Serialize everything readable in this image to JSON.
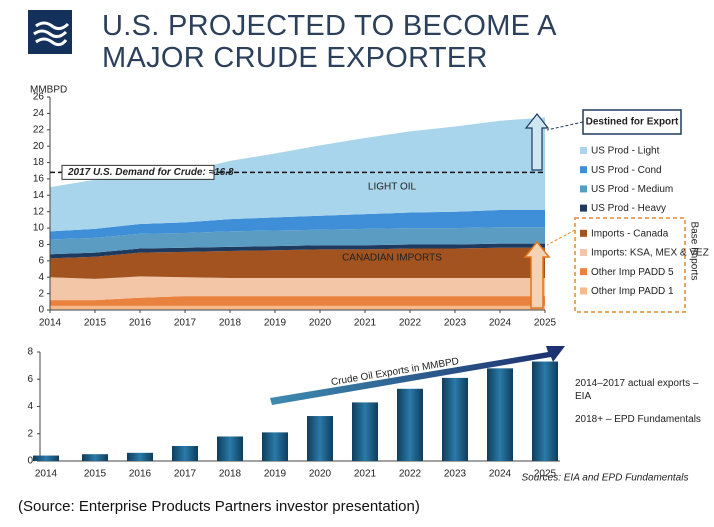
{
  "title": "U.S. PROJECTED TO BECOME A MAJOR CRUDE EXPORTER",
  "footer": "(Source: Enterprise Products Partners investor presentation)",
  "chart_data": [
    {
      "type": "area",
      "stacked": true,
      "y_label": "MMBPD",
      "x": [
        2014,
        2015,
        2016,
        2017,
        2018,
        2019,
        2020,
        2021,
        2022,
        2023,
        2024,
        2025
      ],
      "xlim": [
        2014,
        2025
      ],
      "ylim": [
        0,
        26
      ],
      "yticks": [
        0,
        2,
        4,
        6,
        8,
        10,
        12,
        14,
        16,
        18,
        20,
        22,
        24,
        26
      ],
      "series": [
        {
          "name": "Other Imp PADD 1",
          "color": "#f6b98c",
          "values": [
            0.5,
            0.5,
            0.5,
            0.5,
            0.5,
            0.5,
            0.5,
            0.5,
            0.5,
            0.5,
            0.5,
            0.5
          ]
        },
        {
          "name": "Other Imp PADD 5",
          "color": "#e8823e",
          "values": [
            0.7,
            0.7,
            1.0,
            1.2,
            1.2,
            1.2,
            1.2,
            1.2,
            1.2,
            1.2,
            1.2,
            1.2
          ]
        },
        {
          "name": "Imports: KSA, MEX & VEZ",
          "color": "#f3c6a8",
          "values": [
            2.8,
            2.6,
            2.6,
            2.3,
            2.2,
            2.2,
            2.2,
            2.2,
            2.2,
            2.2,
            2.2,
            2.2
          ]
        },
        {
          "name": "Imports - Canada",
          "color": "#a3531f",
          "values": [
            2.3,
            2.7,
            2.9,
            3.1,
            3.3,
            3.4,
            3.5,
            3.5,
            3.6,
            3.6,
            3.7,
            3.7
          ]
        },
        {
          "name": "US Prod - Heavy",
          "color": "#1f3a5f",
          "values": [
            0.5,
            0.5,
            0.5,
            0.5,
            0.5,
            0.5,
            0.5,
            0.5,
            0.5,
            0.5,
            0.5,
            0.5
          ]
        },
        {
          "name": "US Prod - Medium",
          "color": "#5b9cc2",
          "values": [
            1.8,
            1.8,
            1.8,
            1.8,
            1.9,
            1.9,
            1.9,
            2.0,
            2.0,
            2.0,
            2.0,
            2.0
          ]
        },
        {
          "name": "US Prod - Cond",
          "color": "#3f8fd8",
          "values": [
            1.0,
            1.1,
            1.2,
            1.3,
            1.5,
            1.6,
            1.7,
            1.8,
            1.9,
            2.0,
            2.1,
            2.1
          ]
        },
        {
          "name": "US Prod - Light",
          "color": "#a9d5ec",
          "values": [
            5.4,
            6.0,
            5.7,
            6.2,
            7.1,
            7.8,
            8.6,
            9.3,
            9.9,
            10.4,
            10.9,
            11.3
          ]
        }
      ],
      "reference_line": {
        "value": 16.8,
        "label": "2017 U.S. Demand for Crude:  ≈16.8"
      },
      "annotations": [
        "LIGHT OIL",
        "CANADIAN IMPORTS"
      ],
      "callouts": [
        "Destined for  Export",
        "Base Imports"
      ]
    },
    {
      "type": "bar",
      "categories": [
        "2014",
        "2015",
        "2016",
        "2017",
        "2018",
        "2019",
        "2020",
        "2021",
        "2022",
        "2023",
        "2024",
        "2025"
      ],
      "values": [
        0.4,
        0.5,
        0.6,
        1.1,
        1.8,
        2.1,
        3.3,
        4.3,
        5.3,
        6.1,
        6.8,
        7.3
      ],
      "color": "#1d5f86",
      "ylim": [
        0,
        8
      ],
      "yticks": [
        0,
        2,
        4,
        6,
        8
      ],
      "arrow_label": "Crude Oil Exports in MMBPD",
      "notes": [
        "2014–2017 actual exports – EIA",
        "2018+ – EPD Fundamentals"
      ],
      "source": "Sources:  EIA and EPD Fundamentals"
    }
  ]
}
